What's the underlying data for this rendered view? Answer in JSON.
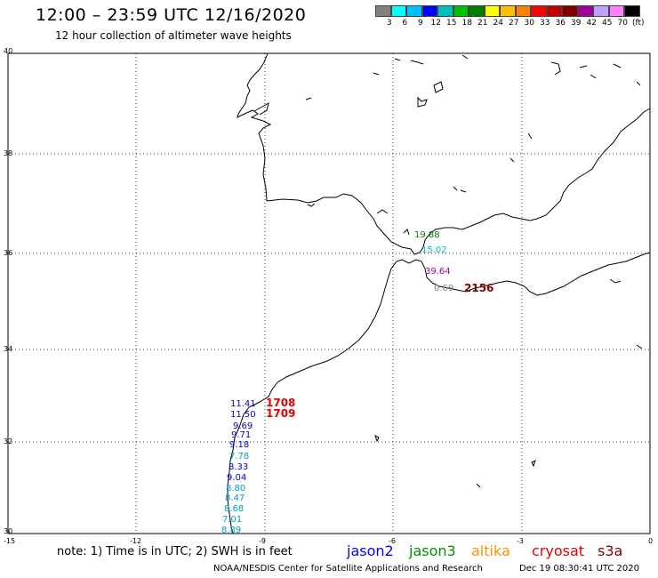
{
  "header": {
    "title": "12:00 – 23:59 UTC 12/16/2020",
    "subtitle": "12 hour collection of altimeter wave heights"
  },
  "legend": {
    "colors": [
      "#808080",
      "#00ffff",
      "#00bfff",
      "#0000ff",
      "#00bfbf",
      "#00c000",
      "#008000",
      "#ffff00",
      "#ffbf00",
      "#ff8000",
      "#ff0000",
      "#c00000",
      "#800000",
      "#a000a0",
      "#c0a0ff",
      "#ff80ff",
      "#000000"
    ],
    "labels": [
      "3",
      "6",
      "9",
      "12",
      "15",
      "18",
      "21",
      "24",
      "27",
      "30",
      "33",
      "36",
      "39",
      "42",
      "45",
      "70",
      "(ft)"
    ]
  },
  "axes": {
    "x_ticks": [
      "-15",
      "-12",
      "-9",
      "-6",
      "-3",
      "0"
    ],
    "y_ticks": [
      "40",
      "38",
      "36",
      "34",
      "32",
      "30"
    ]
  },
  "swh_labels": [
    {
      "text": "11.41",
      "color": "#0000c0"
    },
    {
      "text": "11.50",
      "color": "#0000c0"
    },
    {
      "text": "9.69",
      "color": "#0000c0"
    },
    {
      "text": "9.71",
      "color": "#0000c0"
    },
    {
      "text": "9.18",
      "color": "#0000c0"
    },
    {
      "text": "7.78",
      "color": "#00a0c0"
    },
    {
      "text": "8.33",
      "color": "#0000c0"
    },
    {
      "text": "9.04",
      "color": "#0000c0"
    },
    {
      "text": "8.80",
      "color": "#00a0c0"
    },
    {
      "text": "8.47",
      "color": "#00a0c0"
    },
    {
      "text": "8.68",
      "color": "#00a0c0"
    },
    {
      "text": "7.01",
      "color": "#00a0c0"
    },
    {
      "text": "8.89",
      "color": "#00a0c0"
    },
    {
      "text": "19.88",
      "color": "#008000"
    },
    {
      "text": "15.02",
      "color": "#00c0c0"
    },
    {
      "text": "39.64",
      "color": "#a000a0"
    },
    {
      "text": "0.69",
      "color": "#808080"
    }
  ],
  "time_labels": [
    {
      "text": "1708",
      "color": "#e00000"
    },
    {
      "text": "1709",
      "color": "#e00000"
    },
    {
      "text": "2156",
      "color": "#800000"
    }
  ],
  "footer": {
    "note": "note: 1) Time is in UTC; 2) SWH is in feet",
    "satellites": [
      {
        "name": "jason2",
        "color": "#0000ff"
      },
      {
        "name": "jason3",
        "color": "#009000"
      },
      {
        "name": "altika",
        "color": "#ff9000"
      },
      {
        "name": "cryosat",
        "color": "#e00000"
      },
      {
        "name": "s3a",
        "color": "#800000"
      }
    ],
    "credit": "NOAA/NESDIS Center for Satellite Applications and Research",
    "timestamp": "Dec 19 08:30:41 UTC 2020"
  }
}
